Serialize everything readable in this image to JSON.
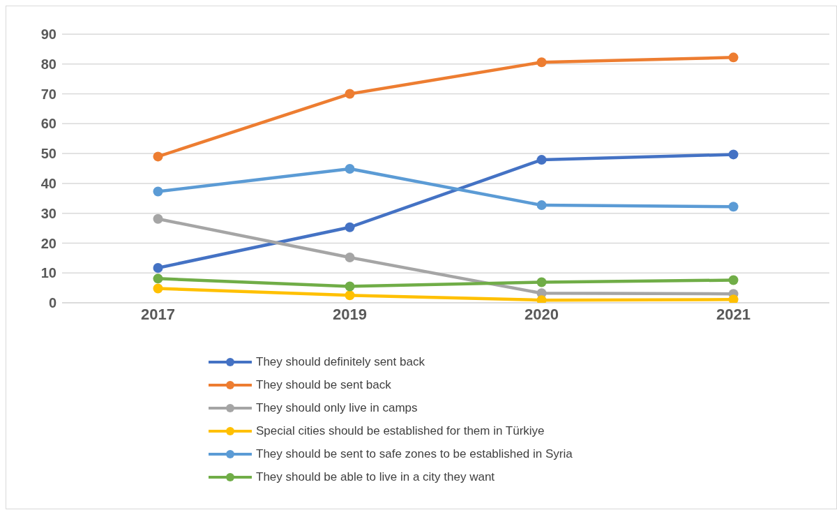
{
  "chart_data": {
    "type": "line",
    "categories": [
      "2017",
      "2019",
      "2020",
      "2021"
    ],
    "series": [
      {
        "name": "They should definitely sent back",
        "color": "#4472c4",
        "values": [
          11.7,
          25.3,
          47.9,
          49.7
        ]
      },
      {
        "name": "They should be sent back",
        "color": "#ed7d31",
        "values": [
          49.0,
          70.0,
          80.6,
          82.2
        ]
      },
      {
        "name": "They should only live in camps",
        "color": "#a5a5a5",
        "values": [
          28.1,
          15.2,
          3.2,
          3.0
        ]
      },
      {
        "name": "Special cities should be established for them in Türkiye",
        "color": "#ffc000",
        "values": [
          4.8,
          2.5,
          0.9,
          1.1
        ]
      },
      {
        "name": "They should be sent to safe zones to be established in Syria",
        "color": "#5b9bd5",
        "values": [
          37.3,
          44.9,
          32.7,
          32.2
        ]
      },
      {
        "name": "They should be able to live in a city they want",
        "color": "#70ad47",
        "values": [
          8.1,
          5.5,
          6.9,
          7.6
        ]
      }
    ],
    "ylim": [
      0,
      90
    ],
    "yticks": [
      0,
      10,
      20,
      30,
      40,
      50,
      60,
      70,
      80,
      90
    ],
    "grid": "y",
    "legend": "bottom",
    "marker": "circle",
    "line_style": "solid"
  }
}
